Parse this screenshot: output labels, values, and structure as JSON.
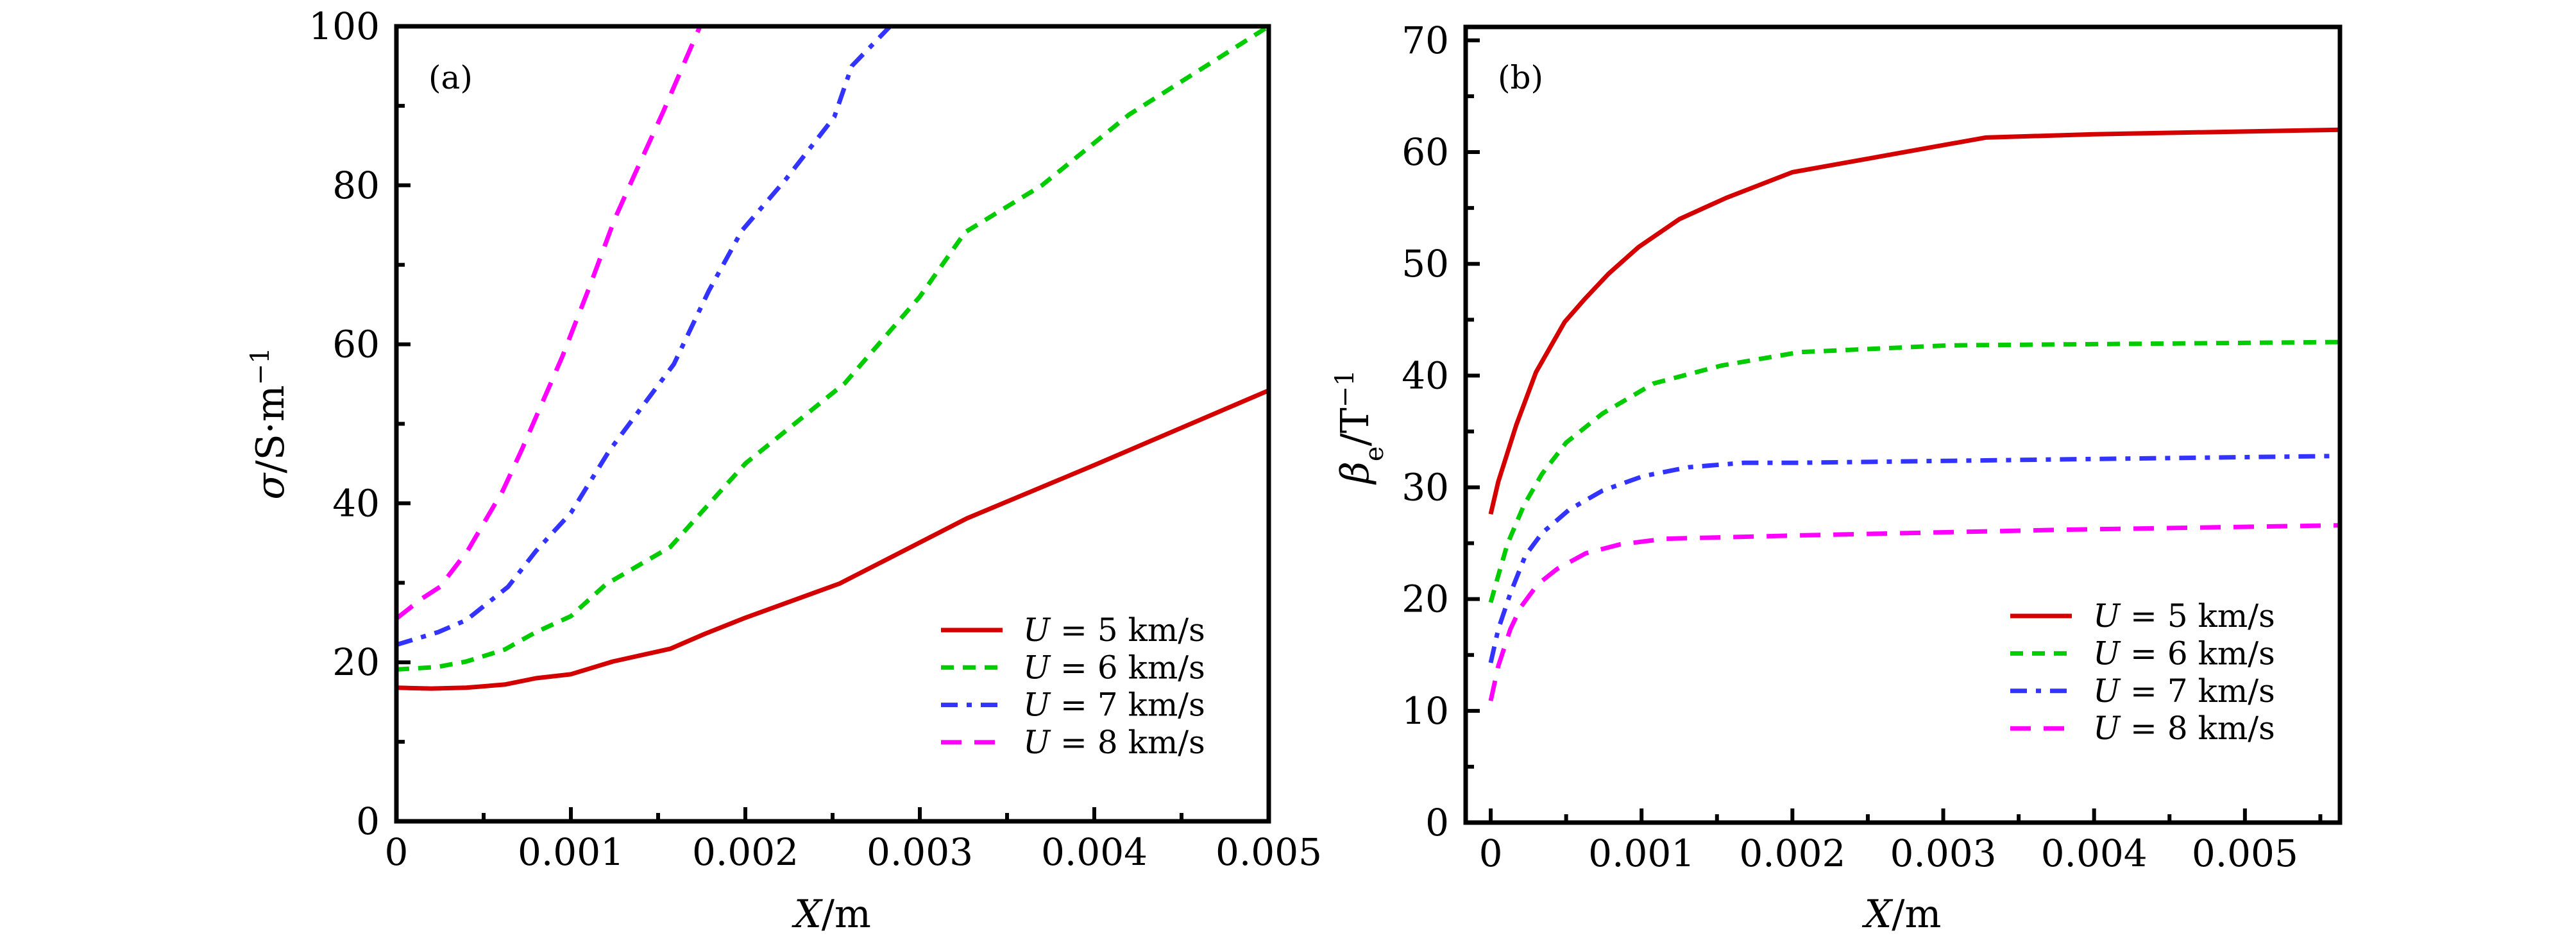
{
  "figure": {
    "panels": [
      "(a)",
      "(b)"
    ]
  },
  "chart_data": [
    {
      "panel": "(a)",
      "type": "line",
      "title": "",
      "panel_label": "(a)",
      "xlabel": "X/m",
      "xlabel_var": "X",
      "xlabel_unit": "/m",
      "ylabel": "σ/S·m⁻¹",
      "ylabel_var": "σ",
      "ylabel_unit": "/S·m",
      "ylabel_sup": "−1",
      "xlim": [
        0,
        0.005
      ],
      "ylim": [
        0,
        100
      ],
      "xticks": [
        0,
        0.001,
        0.002,
        0.003,
        0.004,
        0.005
      ],
      "xtick_labels": [
        "0",
        "0.001",
        "0.002",
        "0.003",
        "0.004",
        "0.005"
      ],
      "xminor": [
        0.0005,
        0.0015,
        0.0025,
        0.0035,
        0.0045
      ],
      "yticks": [
        0,
        20,
        40,
        60,
        80,
        100
      ],
      "ytick_labels": [
        "0",
        "20",
        "40",
        "60",
        "80",
        "100"
      ],
      "yminor": [
        10,
        30,
        50,
        70,
        90
      ],
      "grid": false,
      "legend_position": "lower-right",
      "series": [
        {
          "name": "U = 5 km/s",
          "legend_var": "U",
          "legend_value": "= 5 km/s",
          "color": "#d40000",
          "dash": "solid",
          "points": [
            [
              0,
              16.8
            ],
            [
              0.0002,
              16.7
            ],
            [
              0.0004,
              16.8
            ],
            [
              0.00062,
              17.2
            ],
            [
              0.0008,
              18.0
            ],
            [
              0.001,
              18.5
            ],
            [
              0.00124,
              20.1
            ],
            [
              0.00157,
              21.7
            ],
            [
              0.00177,
              23.6
            ],
            [
              0.002,
              25.6
            ],
            [
              0.00254,
              29.9
            ],
            [
              0.00327,
              38.1
            ],
            [
              0.004,
              44.8
            ],
            [
              0.005,
              54.2
            ]
          ]
        },
        {
          "name": "U = 6 km/s",
          "legend_var": "U",
          "legend_value": "= 6 km/s",
          "color": "#00cc00",
          "dash": "dash",
          "points": [
            [
              0,
              19.1
            ],
            [
              0.00023,
              19.4
            ],
            [
              0.0004,
              20.1
            ],
            [
              0.00062,
              21.6
            ],
            [
              0.0008,
              23.8
            ],
            [
              0.001,
              25.8
            ],
            [
              0.0012,
              29.8
            ],
            [
              0.00157,
              34.5
            ],
            [
              0.002,
              45.0
            ],
            [
              0.00257,
              55.1
            ],
            [
              0.003,
              66.0
            ],
            [
              0.00326,
              74.1
            ],
            [
              0.0037,
              80.0
            ],
            [
              0.0042,
              88.9
            ],
            [
              0.005,
              100.0
            ]
          ]
        },
        {
          "name": "U = 7 km/s",
          "legend_var": "U",
          "legend_value": "= 7 km/s",
          "color": "#3333ff",
          "dash": "dashdot",
          "points": [
            [
              0,
              22.2
            ],
            [
              0.00024,
              23.8
            ],
            [
              0.0004,
              25.3
            ],
            [
              0.00064,
              29.5
            ],
            [
              0.0008,
              34.0
            ],
            [
              0.001,
              38.8
            ],
            [
              0.00122,
              46.6
            ],
            [
              0.00159,
              57.5
            ],
            [
              0.00179,
              66.7
            ],
            [
              0.00198,
              74.3
            ],
            [
              0.00223,
              80.7
            ],
            [
              0.00251,
              88.6
            ],
            [
              0.00261,
              95.0
            ],
            [
              0.00283,
              100.0
            ]
          ]
        },
        {
          "name": "U = 8 km/s",
          "legend_var": "U",
          "legend_value": "= 8 km/s",
          "color": "#ff00ff",
          "dash": "longdash",
          "points": [
            [
              0,
              25.5
            ],
            [
              0.000145,
              28.0
            ],
            [
              0.00025,
              29.5
            ],
            [
              0.00041,
              34.1
            ],
            [
              0.00061,
              41.6
            ],
            [
              0.00072,
              46.8
            ],
            [
              0.00095,
              58.4
            ],
            [
              0.00111,
              67.4
            ],
            [
              0.00125,
              75.7
            ],
            [
              0.00136,
              81.1
            ],
            [
              0.00153,
              89.3
            ],
            [
              0.00174,
              100.0
            ]
          ]
        }
      ]
    },
    {
      "panel": "(b)",
      "type": "line",
      "title": "",
      "panel_label": "(b)",
      "xlabel": "X/m",
      "xlabel_var": "X",
      "xlabel_unit": "/m",
      "ylabel": "βe/T⁻¹",
      "ylabel_var": "β",
      "ylabel_sub": "e",
      "ylabel_unit": "/T",
      "ylabel_sup": "−1",
      "xlim": [
        -0.000166,
        0.00563
      ],
      "ylim": [
        0,
        71.2
      ],
      "xticks": [
        0,
        0.001,
        0.002,
        0.003,
        0.004,
        0.005
      ],
      "xtick_labels": [
        "0",
        "0.001",
        "0.002",
        "0.003",
        "0.004",
        "0.005"
      ],
      "xminor": [
        0.0005,
        0.0015,
        0.0025,
        0.0035,
        0.0045,
        0.0055
      ],
      "yticks": [
        0,
        10,
        20,
        30,
        40,
        50,
        60,
        70
      ],
      "ytick_labels": [
        "0",
        "10",
        "20",
        "30",
        "40",
        "50",
        "60",
        "70"
      ],
      "yminor": [
        5,
        15,
        25,
        35,
        45,
        55,
        65
      ],
      "grid": false,
      "legend_position": "lower-right",
      "series": [
        {
          "name": "U = 5 km/s",
          "legend_var": "U",
          "legend_value": "= 5 km/s",
          "color": "#d40000",
          "dash": "solid",
          "points": [
            [
              0,
              27.6
            ],
            [
              5e-05,
              30.5
            ],
            [
              0.00017,
              35.6
            ],
            [
              0.0003,
              40.3
            ],
            [
              0.00049,
              44.8
            ],
            [
              0.00062,
              46.8
            ],
            [
              0.00078,
              49.1
            ],
            [
              0.00098,
              51.5
            ],
            [
              0.00125,
              54.0
            ],
            [
              0.00156,
              55.9
            ],
            [
              0.002,
              58.2
            ],
            [
              0.00328,
              61.3
            ],
            [
              0.004,
              61.6
            ],
            [
              0.00563,
              62.0
            ]
          ]
        },
        {
          "name": "U = 6 km/s",
          "legend_var": "U",
          "legend_value": "= 6 km/s",
          "color": "#00cc00",
          "dash": "dash",
          "points": [
            [
              0,
              19.7
            ],
            [
              5e-05,
              22.1
            ],
            [
              0.00011,
              24.9
            ],
            [
              0.00022,
              28.4
            ],
            [
              0.00034,
              31.2
            ],
            [
              0.0005,
              34.0
            ],
            [
              0.00074,
              36.6
            ],
            [
              0.00108,
              39.3
            ],
            [
              0.00153,
              40.9
            ],
            [
              0.00205,
              42.1
            ],
            [
              0.00303,
              42.7
            ],
            [
              0.00563,
              43.0
            ]
          ]
        },
        {
          "name": "U = 7 km/s",
          "legend_var": "U",
          "legend_value": "= 7 km/s",
          "color": "#3333ff",
          "dash": "dashdot",
          "points": [
            [
              0,
              14.3
            ],
            [
              5e-05,
              17.3
            ],
            [
              0.00013,
              20.5
            ],
            [
              0.00023,
              23.9
            ],
            [
              0.00034,
              25.9
            ],
            [
              0.00052,
              28.0
            ],
            [
              0.00074,
              29.7
            ],
            [
              0.00101,
              31.0
            ],
            [
              0.00131,
              31.8
            ],
            [
              0.00168,
              32.2
            ],
            [
              0.00205,
              32.2
            ],
            [
              0.00377,
              32.5
            ],
            [
              0.00557,
              32.8
            ]
          ]
        },
        {
          "name": "U = 8 km/s",
          "legend_var": "U",
          "legend_value": "= 8 km/s",
          "color": "#ff00ff",
          "dash": "longdash",
          "points": [
            [
              0,
              10.9
            ],
            [
              5e-05,
              14.0
            ],
            [
              0.00013,
              17.3
            ],
            [
              0.0002,
              19.3
            ],
            [
              0.00031,
              21.3
            ],
            [
              0.00044,
              22.7
            ],
            [
              0.00063,
              24.1
            ],
            [
              0.00086,
              24.9
            ],
            [
              0.00116,
              25.4
            ],
            [
              0.00205,
              25.7
            ],
            [
              0.00377,
              26.2
            ],
            [
              0.00563,
              26.6
            ]
          ]
        }
      ]
    }
  ]
}
